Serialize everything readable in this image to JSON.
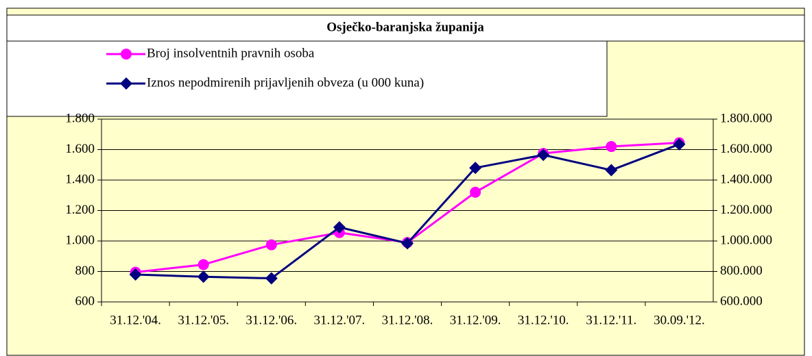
{
  "chart_data": {
    "type": "line",
    "title": "Osječko-baranjska županija",
    "categories": [
      "31.12.'04.",
      "31.12.'05.",
      "31.12.'06.",
      "31.12.'07.",
      "31.12.'08.",
      "31.12.'09.",
      "31.12.'10.",
      "31.12.'11.",
      "30.09.'12."
    ],
    "series": [
      {
        "name": "Broj insolventnih pravnih osoba",
        "color": "#ff00ff",
        "marker": "circle",
        "values": [
          795,
          845,
          975,
          1055,
          990,
          1320,
          1575,
          1620,
          1645
        ]
      },
      {
        "name": "Iznos nepodmirenih prijavljenih obveza (u 000 kuna)",
        "color": "#000080",
        "marker": "diamond",
        "axis": "y2",
        "values": [
          780000,
          765000,
          755000,
          1090000,
          985000,
          1480000,
          1565000,
          1465000,
          1635000
        ]
      }
    ],
    "ylim": [
      600,
      1800
    ],
    "yticks": [
      600,
      800,
      {
        "value": 1000,
        "label": "1.000"
      },
      {
        "value": 1200,
        "label": "1.200"
      },
      {
        "value": 1400,
        "label": "1.400"
      },
      {
        "value": 1600,
        "label": "1.600"
      },
      {
        "value": 1800,
        "label": "1.800"
      }
    ],
    "y2lim": [
      600000,
      1800000
    ],
    "y2ticks": [
      {
        "value": 600000,
        "label": "600.000"
      },
      {
        "value": 800000,
        "label": "800.000"
      },
      {
        "value": 1000000,
        "label": "1.000.000"
      },
      {
        "value": 1200000,
        "label": "1.200.000"
      },
      {
        "value": 1400000,
        "label": "1.400.000"
      },
      {
        "value": 1600000,
        "label": "1.600.000"
      },
      {
        "value": 1800000,
        "label": "1.800.000"
      }
    ],
    "grid": true,
    "background": "#ffffcc"
  }
}
